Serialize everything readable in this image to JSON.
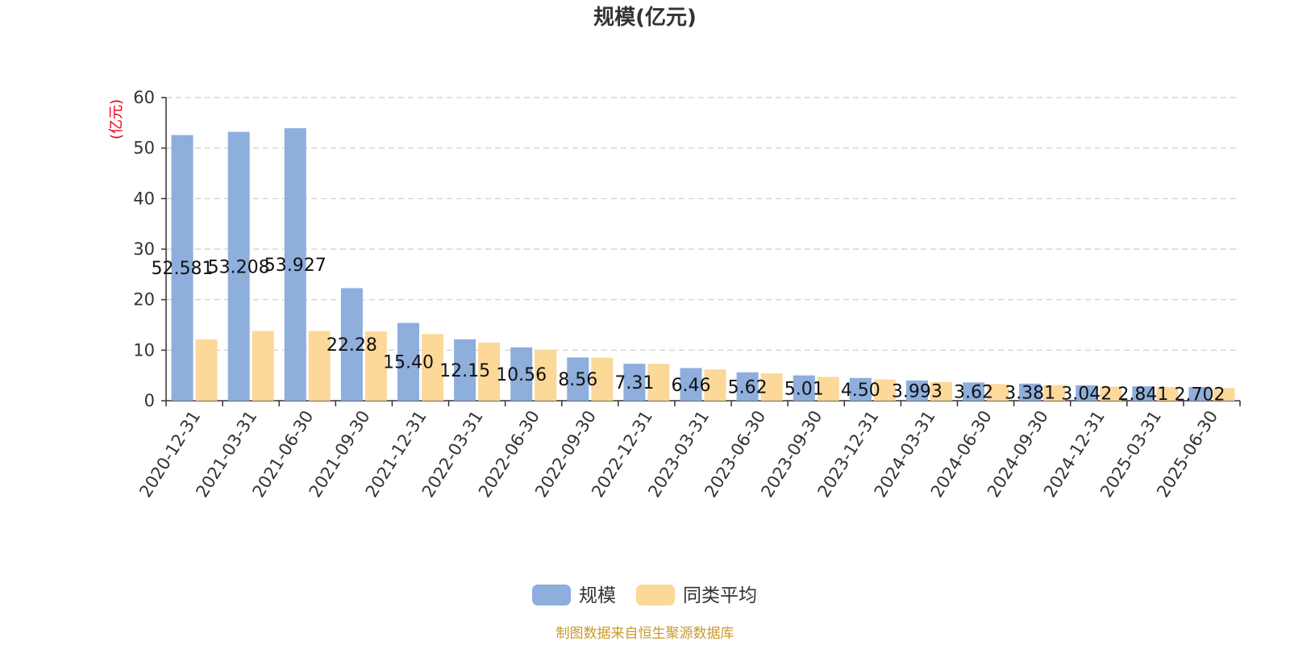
{
  "chart_data": {
    "type": "bar",
    "title": "规模(亿元)",
    "ylabel": "(亿元)",
    "ylim": [
      0,
      60
    ],
    "yticks": [
      0,
      10,
      20,
      30,
      40,
      50,
      60
    ],
    "grid": true,
    "legend_position": "bottom",
    "categories": [
      "2020-12-31",
      "2021-03-31",
      "2021-06-30",
      "2021-09-30",
      "2021-12-31",
      "2022-03-31",
      "2022-06-30",
      "2022-09-30",
      "2022-12-31",
      "2023-03-31",
      "2023-06-30",
      "2023-09-30",
      "2023-12-31",
      "2024-03-31",
      "2024-06-30",
      "2024-09-30",
      "2024-12-31",
      "2025-03-31",
      "2025-06-30"
    ],
    "series": [
      {
        "name": "规模",
        "color": "#8eaedc",
        "values": [
          52.581,
          53.208,
          53.927,
          22.28,
          15.4,
          12.15,
          10.56,
          8.56,
          7.31,
          6.46,
          5.62,
          5.01,
          4.5,
          3.993,
          3.62,
          3.381,
          3.042,
          2.841,
          2.702
        ],
        "labels": [
          "52.581",
          "53.208",
          "53.927",
          "22.28",
          "15.40",
          "12.15",
          "10.56",
          "8.56",
          "7.31",
          "6.46",
          "5.62",
          "5.01",
          "4.50",
          "3.993",
          "3.62",
          "3.381",
          "3.042",
          "2.841",
          "2.702"
        ]
      },
      {
        "name": "同类平均",
        "color": "#fcd899",
        "values": [
          12.1,
          13.8,
          13.8,
          13.7,
          13.2,
          11.5,
          10.1,
          8.5,
          7.3,
          6.2,
          5.4,
          4.7,
          4.2,
          3.7,
          3.3,
          3.1,
          2.8,
          2.7,
          2.5
        ]
      }
    ]
  },
  "footer": {
    "source": "制图数据来自恒生聚源数据库"
  }
}
